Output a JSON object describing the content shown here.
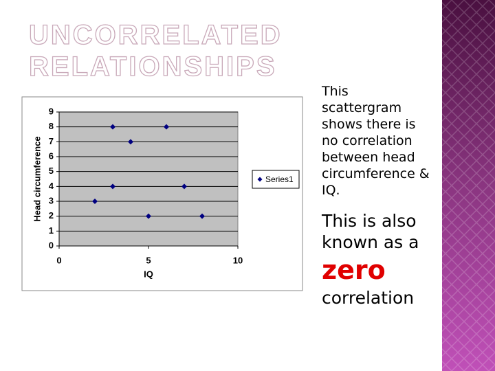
{
  "title_lines": [
    "UNCORRELATED",
    "RELATIONSHIPS"
  ],
  "body": {
    "paragraph1": "This scattergram shows there is no correlation between head circumference & IQ.",
    "paragraph2_start": "This is also known as a",
    "highlight": "zero",
    "paragraph2_end": "correlation"
  },
  "chart_data": {
    "type": "scatter",
    "x": [
      2,
      3,
      3,
      4,
      5,
      6,
      7,
      8
    ],
    "series": [
      {
        "name": "Series1",
        "color": "#000080",
        "values": [
          3,
          8,
          4,
          7,
          2,
          8,
          4,
          2
        ]
      }
    ],
    "xlabel": "IQ",
    "ylabel": "Head circumference",
    "xlim": [
      0,
      10
    ],
    "xticks": [
      0,
      5,
      10
    ],
    "ylim": [
      0,
      9
    ],
    "yticks": [
      0,
      1,
      2,
      3,
      4,
      5,
      6,
      7,
      8,
      9
    ],
    "grid": true,
    "legend": "right"
  }
}
